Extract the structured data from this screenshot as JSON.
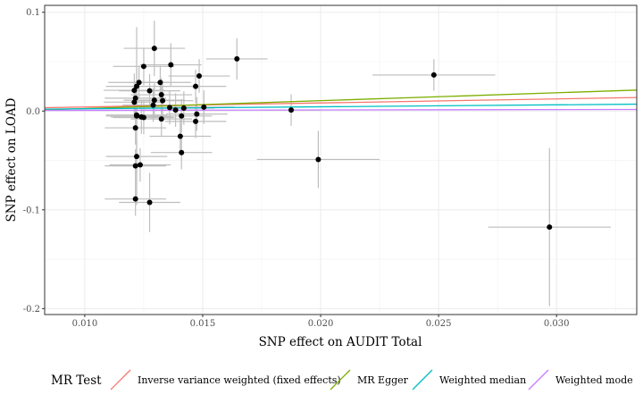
{
  "chart_data": {
    "type": "scatter",
    "xlabel": "SNP effect on AUDIT Total",
    "ylabel": "SNP effect on LOAD",
    "xlim": [
      0.0083,
      0.0334
    ],
    "ylim": [
      -0.206,
      0.107
    ],
    "x_ticks": [
      0.01,
      0.015,
      0.02,
      0.025,
      0.03
    ],
    "x_tick_labels": [
      "0.010",
      "0.015",
      "0.020",
      "0.025",
      "0.030"
    ],
    "y_ticks": [
      0.1,
      0.0,
      -0.1,
      -0.2
    ],
    "y_tick_labels": [
      "0.1",
      "0.0",
      "-0.1",
      "-0.2"
    ],
    "grid": true,
    "legend_position": "bottom",
    "legend_title": "MR Test",
    "error_bar_color": "#bebebe",
    "point_color": "#000000",
    "points": [
      {
        "x": 0.01295,
        "y": 0.0635,
        "xerr": 0.0013,
        "yerr": 0.028
      },
      {
        "x": 0.01645,
        "y": 0.0528,
        "xerr": 0.0013,
        "yerr": 0.021
      },
      {
        "x": 0.0125,
        "y": 0.0452,
        "xerr": 0.0013,
        "yerr": 0.019
      },
      {
        "x": 0.01365,
        "y": 0.0468,
        "xerr": 0.0013,
        "yerr": 0.022
      },
      {
        "x": 0.01485,
        "y": 0.0355,
        "xerr": 0.0013,
        "yerr": 0.017
      },
      {
        "x": 0.0132,
        "y": 0.029,
        "xerr": 0.0013,
        "yerr": 0.017
      },
      {
        "x": 0.0123,
        "y": 0.029,
        "xerr": 0.0013,
        "yerr": 0.017
      },
      {
        "x": 0.0122,
        "y": 0.025,
        "xerr": 0.0013,
        "yerr": 0.018
      },
      {
        "x": 0.0147,
        "y": 0.025,
        "xerr": 0.0013,
        "yerr": 0.017
      },
      {
        "x": 0.0121,
        "y": 0.021,
        "xerr": 0.0013,
        "yerr": 0.017
      },
      {
        "x": 0.01275,
        "y": 0.0205,
        "xerr": 0.0013,
        "yerr": 0.017
      },
      {
        "x": 0.01325,
        "y": 0.0165,
        "xerr": 0.0013,
        "yerr": 0.017
      },
      {
        "x": 0.01215,
        "y": 0.013,
        "xerr": 0.0013,
        "yerr": 0.017
      },
      {
        "x": 0.01295,
        "y": 0.011,
        "xerr": 0.0013,
        "yerr": 0.017
      },
      {
        "x": 0.0133,
        "y": 0.0105,
        "xerr": 0.0013,
        "yerr": 0.017
      },
      {
        "x": 0.0121,
        "y": 0.009,
        "xerr": 0.0013,
        "yerr": 0.017
      },
      {
        "x": 0.0129,
        "y": 0.006,
        "xerr": 0.0013,
        "yerr": 0.017
      },
      {
        "x": 0.01505,
        "y": 0.004,
        "xerr": 0.0013,
        "yerr": 0.017
      },
      {
        "x": 0.0136,
        "y": 0.0035,
        "xerr": 0.0013,
        "yerr": 0.017
      },
      {
        "x": 0.0142,
        "y": 0.003,
        "xerr": 0.0013,
        "yerr": 0.017
      },
      {
        "x": 0.01385,
        "y": 0.001,
        "xerr": 0.0013,
        "yerr": 0.017
      },
      {
        "x": 0.01475,
        "y": -0.003,
        "xerr": 0.0013,
        "yerr": 0.017
      },
      {
        "x": 0.0141,
        "y": -0.005,
        "xerr": 0.0013,
        "yerr": 0.017
      },
      {
        "x": 0.0122,
        "y": -0.004,
        "xerr": 0.0013,
        "yerr": 0.017
      },
      {
        "x": 0.0124,
        "y": -0.006,
        "xerr": 0.0013,
        "yerr": 0.017
      },
      {
        "x": 0.0125,
        "y": -0.0065,
        "xerr": 0.0013,
        "yerr": 0.017
      },
      {
        "x": 0.01325,
        "y": -0.008,
        "xerr": 0.0013,
        "yerr": 0.017
      },
      {
        "x": 0.0147,
        "y": -0.0105,
        "xerr": 0.0013,
        "yerr": 0.017
      },
      {
        "x": 0.01215,
        "y": -0.017,
        "xerr": 0.0013,
        "yerr": 0.017
      },
      {
        "x": 0.01405,
        "y": -0.0255,
        "xerr": 0.0013,
        "yerr": 0.017
      },
      {
        "x": 0.0141,
        "y": -0.042,
        "xerr": 0.0013,
        "yerr": 0.017
      },
      {
        "x": 0.0122,
        "y": -0.046,
        "xerr": 0.0013,
        "yerr": 0.017
      },
      {
        "x": 0.01235,
        "y": -0.0545,
        "xerr": 0.0013,
        "yerr": 0.017
      },
      {
        "x": 0.01215,
        "y": -0.0555,
        "xerr": 0.0013,
        "yerr": 0.017
      },
      {
        "x": 0.01215,
        "y": -0.089,
        "xerr": 0.0013,
        "yerr": 0.017
      },
      {
        "x": 0.01275,
        "y": -0.0925,
        "xerr": 0.0013,
        "yerr": 0.03
      },
      {
        "x": 0.0122,
        "y": -0.005,
        "xerr": 0.0013,
        "yerr": 0.09
      },
      {
        "x": 0.01875,
        "y": 0.001,
        "xerr": 0.0013,
        "yerr": 0.016
      },
      {
        "x": 0.0199,
        "y": -0.049,
        "xerr": 0.0026,
        "yerr": 0.029
      },
      {
        "x": 0.0248,
        "y": 0.0365,
        "xerr": 0.0026,
        "yerr": 0.016
      },
      {
        "x": 0.0297,
        "y": -0.1175,
        "xerr": 0.0026,
        "yerr": 0.08
      }
    ],
    "series": [
      {
        "name": "Inverse variance weighted (fixed effects)",
        "type": "line",
        "slope": 0.41,
        "intercept": 0.0,
        "color": "#F8766D"
      },
      {
        "name": "MR Egger",
        "type": "line",
        "slope": 0.8,
        "intercept": -0.0055,
        "color": "#7CAE00"
      },
      {
        "name": "Weighted median",
        "type": "line",
        "slope": 0.2,
        "intercept": 0.0003,
        "color": "#00BFC4"
      },
      {
        "name": "Weighted mode",
        "type": "line",
        "slope": 0.04,
        "intercept": 0.0003,
        "color": "#C77CFF"
      }
    ]
  }
}
